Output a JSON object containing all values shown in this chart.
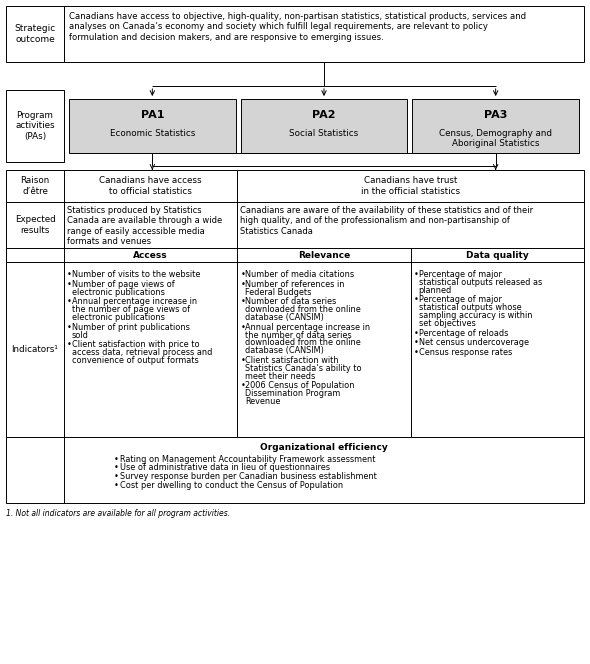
{
  "bg_color": "#ffffff",
  "gray_fill": "#d4d4d4",
  "strategic_outcome_label": "Strategic\noutcome",
  "strategic_outcome_text": "Canadians have access to objective, high-quality, non-partisan statistics, statistical products, services and\nanalyses on Canada’s economy and society which fulfill legal requirements, are relevant to policy\nformulation and decision makers, and are responsive to emerging issues.",
  "program_activities_label": "Program\nactivities\n(PAs)",
  "pa1_bold": "PA1",
  "pa1_sub": "Economic Statistics",
  "pa2_bold": "PA2",
  "pa2_sub": "Social Statistics",
  "pa3_bold": "PA3",
  "pa3_sub": "Census, Demography and\nAboriginal Statistics",
  "raison_label": "Raison\nd’être",
  "raison_col1": "Canadians have access\nto official statistics",
  "raison_col2": "Canadians have trust\nin the official statistics",
  "expected_label": "Expected\nresults",
  "expected_col1": "Statistics produced by Statistics\nCanada are available through a wide\nrange of easily accessible media\nformats and venues",
  "expected_col2": "Canadians are aware of the availability of these statistics and of their\nhigh quality, and of the professionalism and non-partisanship of\nStatistics Canada",
  "indicators_label": "Indicators¹",
  "access_header": "Access",
  "access_bullets": [
    "Number of visits to the website",
    "Number of page views of\nelectronic publications",
    "Annual percentage increase in\nthe number of page views of\nelectronic publications",
    "Number of print publications\nsold",
    "Client satisfaction with price to\naccess data, retrieval process and\nconvenience of output formats"
  ],
  "relevance_header": "Relevance",
  "relevance_bullets": [
    "Number of media citations",
    "Number of references in\nFederal Budgets",
    "Number of data series\ndownloaded from the online\ndatabase (CANSIM)",
    "Annual percentage increase in\nthe number of data series\ndownloaded from the online\ndatabase (CANSIM)",
    "Client satisfaction with\nStatistics Canada’s ability to\nmeet their needs",
    "2006 Census of Population\nDissemination Program\nRevenue"
  ],
  "dataquality_header": "Data quality",
  "dataquality_bullets": [
    "Percentage of major\nstatistical outputs released as\nplanned",
    "Percentage of major\nstatistical outputs whose\nsampling accuracy is within\nset objectives",
    "Percentage of reloads",
    "Net census undercoverage",
    "Census response rates"
  ],
  "org_eff_header": "Organizational efficiency",
  "org_eff_bullets": [
    "Rating on Management Accountability Framework assessment",
    "Use of administrative data in lieu of questionnaires",
    "Survey response burden per Canadian business establishment",
    "Cost per dwelling to conduct the Census of Population"
  ],
  "footnote": "1. Not all indicators are available for all program activities."
}
